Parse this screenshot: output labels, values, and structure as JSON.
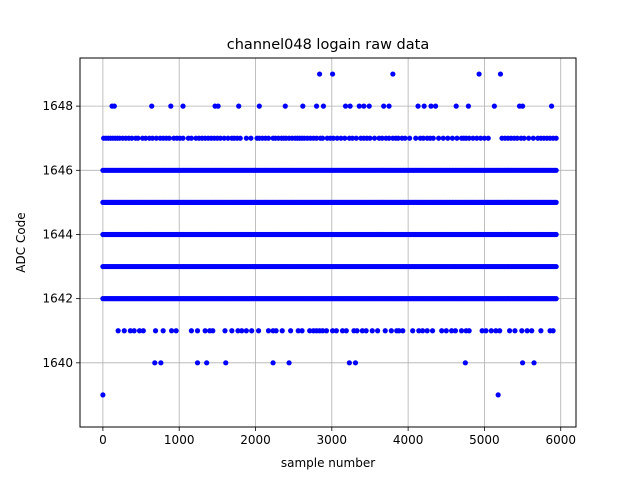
{
  "chart_data": {
    "type": "scatter",
    "title": "channel048 logain raw data",
    "xlabel": "sample number",
    "ylabel": "ADC Code",
    "xlim": [
      -300,
      6200
    ],
    "ylim": [
      1638.0,
      1649.5
    ],
    "xticks": [
      0,
      1000,
      2000,
      3000,
      4000,
      5000,
      6000
    ],
    "yticks": [
      1640,
      1642,
      1644,
      1646,
      1648
    ],
    "grid": true,
    "marker_color": "#0000ff",
    "dense_rows": {
      "x_start": 0,
      "x_end": 5940,
      "step": 20,
      "values": [
        1642,
        1643,
        1644,
        1645,
        1646
      ]
    },
    "sparse_rows": [
      {
        "y": 1647,
        "x": [
          10,
          40,
          70,
          100,
          130,
          160,
          190,
          220,
          260,
          300,
          340,
          380,
          430,
          460,
          520,
          560,
          610,
          650,
          700,
          750,
          790,
          830,
          870,
          930,
          970,
          1010,
          1050,
          1120,
          1160,
          1220,
          1260,
          1300,
          1340,
          1380,
          1420,
          1460,
          1500,
          1540,
          1590,
          1640,
          1690,
          1720,
          1760,
          1800,
          1880,
          1940,
          2020,
          2050,
          2090,
          2130,
          2170,
          2230,
          2260,
          2300,
          2340,
          2370,
          2400,
          2440,
          2480,
          2520,
          2550,
          2580,
          2610,
          2640,
          2680,
          2720,
          2760,
          2800,
          2850,
          2880,
          2940,
          2980,
          3020,
          3070,
          3120,
          3170,
          3230,
          3270,
          3320,
          3380,
          3420,
          3460,
          3500,
          3560,
          3620,
          3660,
          3710,
          3750,
          3800,
          3840,
          3870,
          3920,
          3960,
          4020,
          4100,
          4160,
          4200,
          4250,
          4290,
          4330,
          4400,
          4460,
          4520,
          4580,
          4640,
          4700,
          4730,
          4760,
          4800,
          4850,
          4900,
          4950,
          5000,
          5050,
          5230,
          5270,
          5310,
          5350,
          5390,
          5430,
          5480,
          5520,
          5580,
          5640,
          5700,
          5740,
          5780,
          5820,
          5860,
          5900,
          5940
        ]
      },
      {
        "y": 1648,
        "x": [
          120,
          150,
          640,
          890,
          1050,
          1470,
          1510,
          1780,
          2050,
          2390,
          2620,
          2800,
          2890,
          3180,
          3240,
          3360,
          3420,
          3490,
          3680,
          3750,
          4130,
          4210,
          4300,
          4360,
          4630,
          4790,
          5130,
          5460,
          5500,
          5880
        ]
      },
      {
        "y": 1649,
        "x": [
          2840,
          3010,
          3800,
          4930,
          5210
        ]
      },
      {
        "y": 1641,
        "x": [
          200,
          280,
          360,
          410,
          480,
          530,
          690,
          790,
          900,
          960,
          1160,
          1240,
          1340,
          1400,
          1440,
          1600,
          1690,
          1770,
          1820,
          1880,
          1950,
          2040,
          2170,
          2230,
          2270,
          2350,
          2460,
          2560,
          2610,
          2710,
          2760,
          2800,
          2840,
          2880,
          2930,
          3010,
          3060,
          3140,
          3190,
          3290,
          3330,
          3400,
          3450,
          3530,
          3600,
          3700,
          3780,
          3850,
          3880,
          3930,
          4060,
          4140,
          4190,
          4250,
          4320,
          4440,
          4500,
          4570,
          4620,
          4700,
          4760,
          4800,
          4970,
          5020,
          5090,
          5150,
          5200,
          5330,
          5400,
          5490,
          5560,
          5620,
          5740,
          5860,
          5900
        ]
      },
      {
        "y": 1640,
        "x": [
          680,
          760,
          1240,
          1360,
          1610,
          2230,
          2440,
          3230,
          3310,
          4750,
          5500,
          5650
        ]
      },
      {
        "y": 1639,
        "x": [
          0,
          5180
        ]
      }
    ]
  }
}
